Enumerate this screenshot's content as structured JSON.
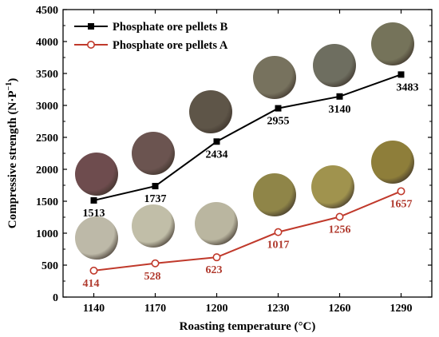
{
  "chart_data": {
    "type": "line",
    "xlabel": "Roasting temperature (°C)",
    "ylabel": "Compressive strength (N·P",
    "ylabel_sup": "−1",
    "ylabel_close": ")",
    "x": [
      1140,
      1170,
      1200,
      1230,
      1260,
      1290
    ],
    "xticks": [
      "1140",
      "1170",
      "1200",
      "1230",
      "1260",
      "1290"
    ],
    "ylim": [
      0,
      4500
    ],
    "yticks": [
      "0",
      "500",
      "1000",
      "1500",
      "2000",
      "2500",
      "3000",
      "3500",
      "4000",
      "4500"
    ],
    "legend_position": "top-left",
    "series": [
      {
        "name": "Phosphate ore pellets B",
        "values": [
          1513,
          1737,
          2434,
          2955,
          3140,
          3483
        ],
        "labels": [
          "1513",
          "1737",
          "2434",
          "2955",
          "3140",
          "3483"
        ],
        "color": "#000000",
        "label_color": "#000000",
        "marker": "filled-square"
      },
      {
        "name": "Phosphate ore pellets A",
        "values": [
          414,
          528,
          623,
          1017,
          1256,
          1657
        ],
        "labels": [
          "414",
          "528",
          "623",
          "1017",
          "1256",
          "1657"
        ],
        "color": "#c0392b",
        "label_color": "#b03a2e",
        "marker": "open-circle"
      }
    ],
    "pellet_photos": {
      "B": [
        "#6e4c4e",
        "#6b5450",
        "#5e5548",
        "#77725e",
        "#6e6e60",
        "#75735a"
      ],
      "A": [
        "#bdb9a8",
        "#c1bea8",
        "#bab6a0",
        "#8f8548",
        "#a0934e",
        "#8e7e3a"
      ]
    }
  }
}
